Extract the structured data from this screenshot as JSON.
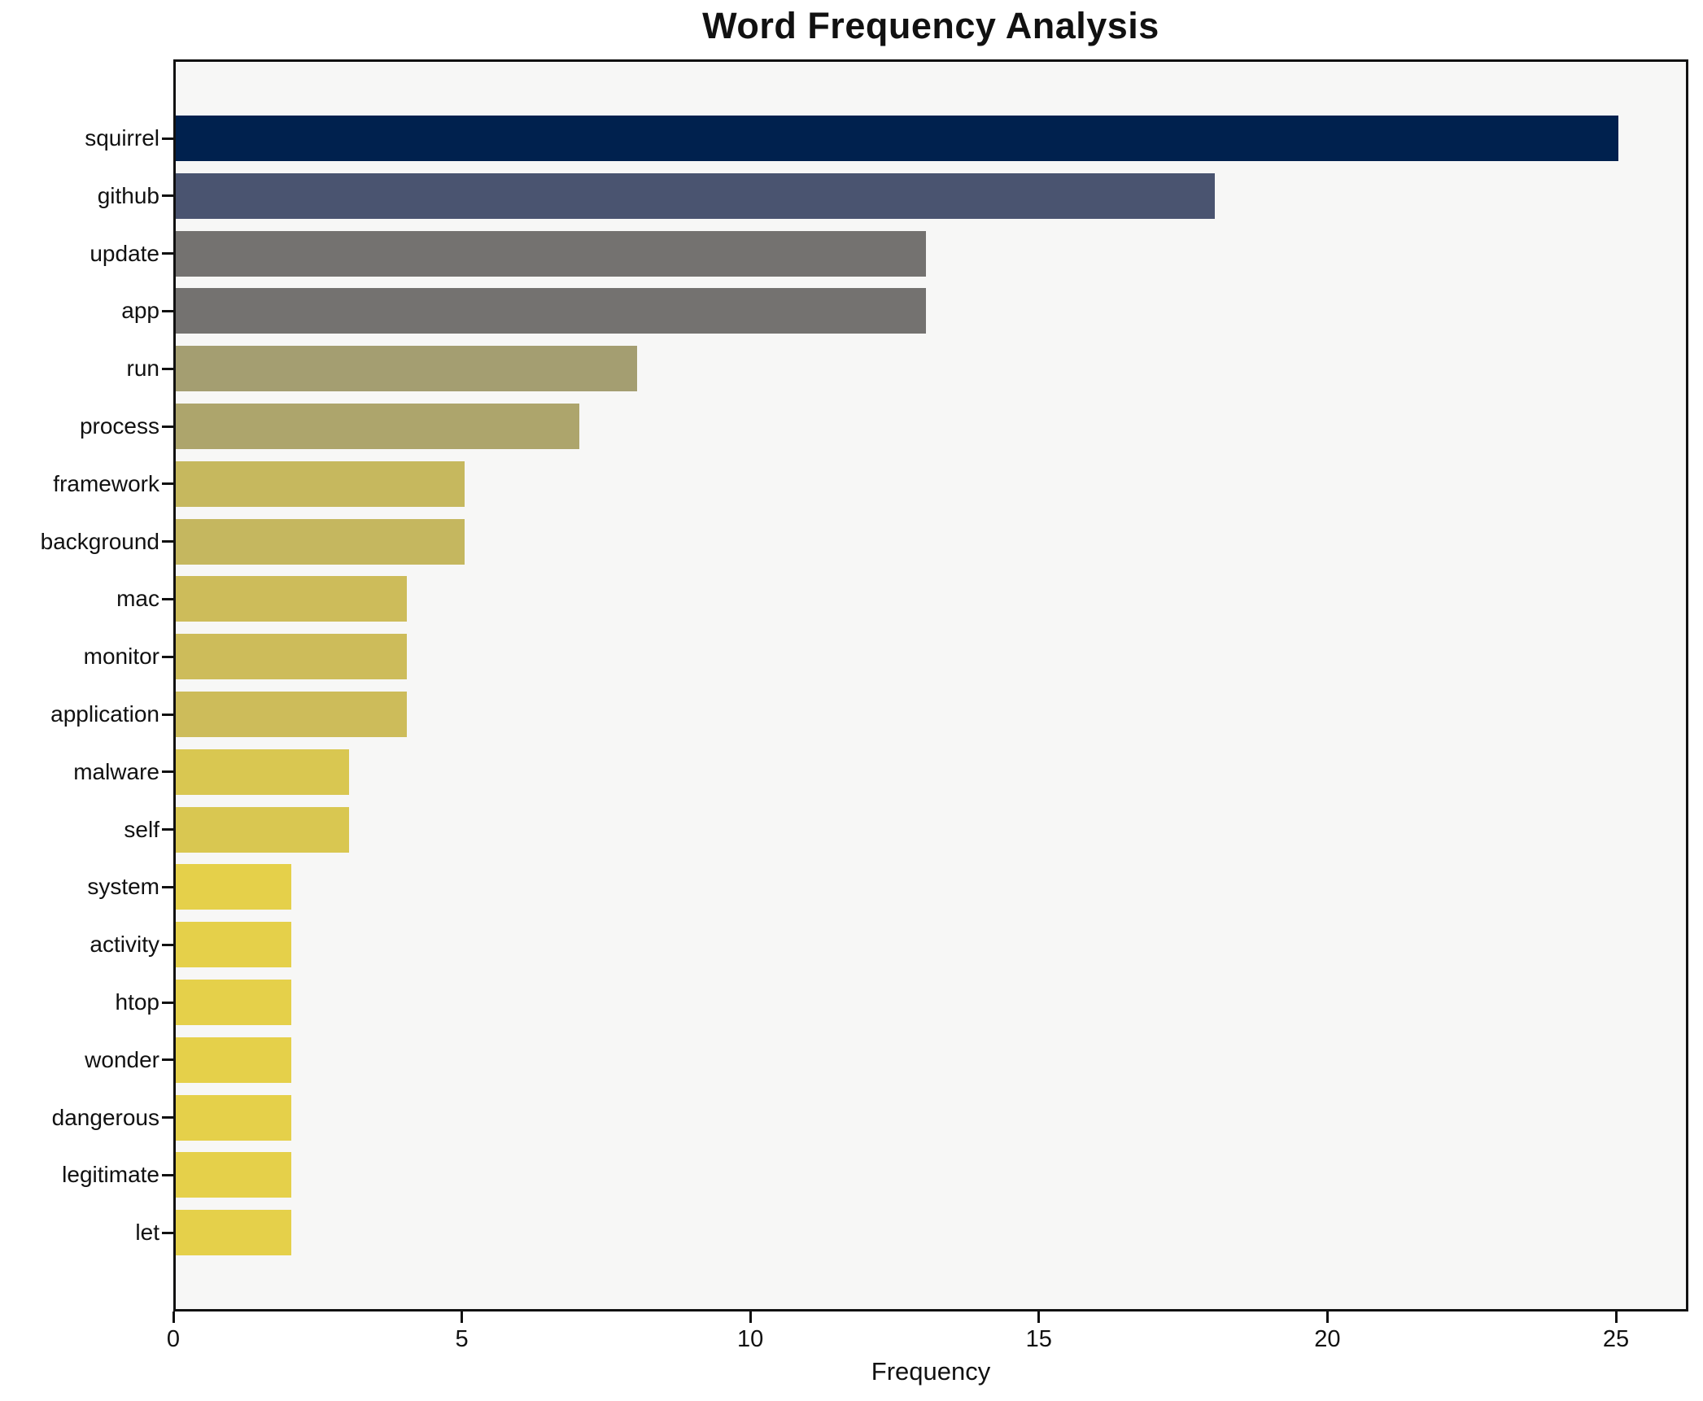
{
  "chart_data": {
    "type": "bar",
    "orientation": "horizontal",
    "title": "Word Frequency Analysis",
    "xlabel": "Frequency",
    "ylabel": "",
    "categories": [
      "squirrel",
      "github",
      "update",
      "app",
      "run",
      "process",
      "framework",
      "background",
      "mac",
      "monitor",
      "application",
      "malware",
      "self",
      "system",
      "activity",
      "htop",
      "wonder",
      "dangerous",
      "legitimate",
      "let"
    ],
    "values": [
      25,
      18,
      13,
      13,
      8,
      7,
      5,
      5,
      4,
      4,
      4,
      3,
      3,
      2,
      2,
      2,
      2,
      2,
      2,
      2
    ],
    "bar_colors": [
      "#00214e",
      "#4a5470",
      "#747270",
      "#747270",
      "#a49e71",
      "#ada56c",
      "#c6b85e",
      "#c5b75f",
      "#cdbc5a",
      "#cdbc5a",
      "#cdbc5a",
      "#d9c751",
      "#d9c751",
      "#e5d04a",
      "#e5d04a",
      "#e5d04a",
      "#e5d04a",
      "#e5d04a",
      "#e5d04a",
      "#e5d04a"
    ],
    "x_ticks": [
      0,
      5,
      10,
      15,
      20,
      25
    ],
    "xlim": [
      0,
      26.3
    ],
    "grid": false,
    "legend": null,
    "colormap": "cividis",
    "plot_bg": "#f7f7f6",
    "figure_bg": "#ffffff",
    "spine_color": "#111111"
  }
}
